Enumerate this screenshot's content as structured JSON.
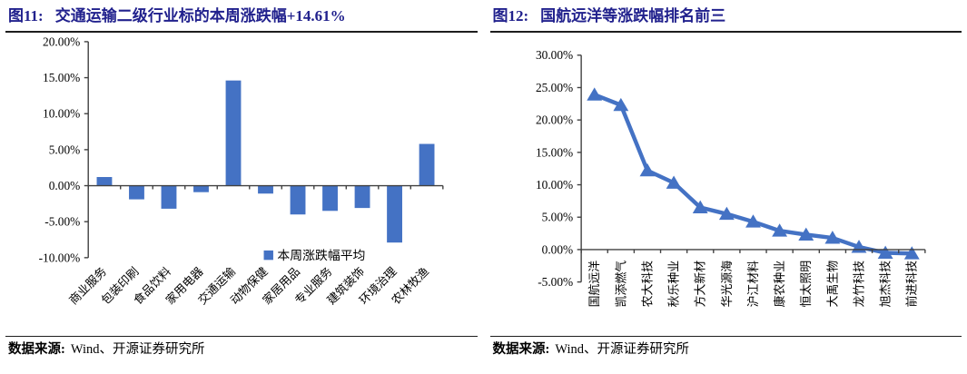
{
  "colors": {
    "accent": "#4472C4",
    "title_navy": "#21218D",
    "axis": "#404040",
    "text": "#000000"
  },
  "figures": [
    {
      "tag": "图11:",
      "title": "交通运输二级行业标的本周涨跌幅+14.61%",
      "source_label": "数据来源:",
      "source_text": "Wind、开源证券研究所"
    },
    {
      "tag": "图12:",
      "title": "国航远洋等涨跌幅排名前三",
      "source_label": "数据来源:",
      "source_text": "Wind、开源证券研究所"
    }
  ],
  "chart_data": [
    {
      "type": "bar",
      "title": "交通运输二级行业标的本周涨跌幅+14.61%",
      "categories": [
        "商业服务",
        "包装印刷",
        "食品饮料",
        "家用电器",
        "交通运输",
        "动物保健",
        "家居用品",
        "专业服务",
        "建筑装饰",
        "环境治理",
        "农林牧渔"
      ],
      "values": [
        1.2,
        -1.9,
        -3.2,
        -0.9,
        14.61,
        -1.1,
        -4.0,
        -3.5,
        -3.1,
        -7.9,
        5.8
      ],
      "series_name": "本周涨跌幅平均",
      "legend": {
        "label": "本周涨跌幅平均",
        "position": "inside-bottom-right"
      },
      "xlabel": "",
      "ylabel": "",
      "ylim": [
        -10,
        20
      ],
      "ytick_step": 5,
      "ytick_format": "0.00%",
      "grid": false,
      "bar_color": "#4472C4",
      "xtick_rotation": -45
    },
    {
      "type": "line",
      "title": "国航远洋等涨跌幅排名前三",
      "categories": [
        "国航远洋",
        "凯添燃气",
        "农大科技",
        "秋乐种业",
        "方大新材",
        "华光源海",
        "沪江材料",
        "康农种业",
        "恒太照明",
        "大禹生物",
        "龙竹科技",
        "旭杰科技",
        "前进科技"
      ],
      "values": [
        23.9,
        22.3,
        12.2,
        10.3,
        6.5,
        5.5,
        4.3,
        2.9,
        2.3,
        1.8,
        0.4,
        -0.5,
        -0.6
      ],
      "marker": "triangle",
      "xlabel": "",
      "ylabel": "",
      "ylim": [
        -5,
        30
      ],
      "ytick_step": 5,
      "ytick_format": "0.00%",
      "grid": false,
      "line_color": "#4472C4",
      "xtick_rotation": -90
    }
  ]
}
